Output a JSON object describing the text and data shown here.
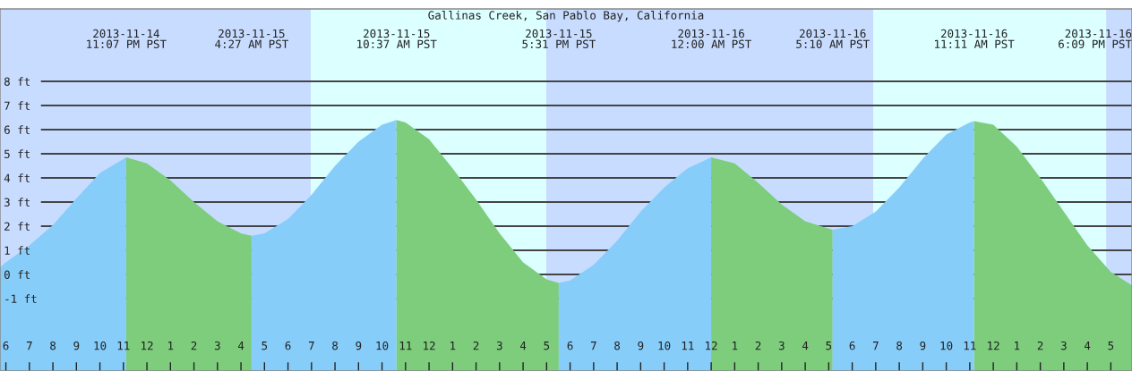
{
  "chart_data": {
    "type": "area",
    "title": "Gallinas Creek, San Pablo Bay, California",
    "xlim": [
      "2013-11-14T17:45",
      "2013-11-16T17:54"
    ],
    "ylim": [
      -4,
      11
    ],
    "xticks": [
      {
        "value": "2013-11-14T18:00",
        "label": "6"
      },
      {
        "value": "2013-11-14T19:00",
        "label": "7"
      },
      {
        "value": "2013-11-14T20:00",
        "label": "8"
      },
      {
        "value": "2013-11-14T21:00",
        "label": "9"
      },
      {
        "value": "2013-11-14T22:00",
        "label": "10"
      },
      {
        "value": "2013-11-14T23:00",
        "label": "11"
      },
      {
        "value": "2013-11-15T00:00",
        "label": "12"
      },
      {
        "value": "2013-11-15T01:00",
        "label": "1"
      },
      {
        "value": "2013-11-15T02:00",
        "label": "2"
      },
      {
        "value": "2013-11-15T03:00",
        "label": "3"
      },
      {
        "value": "2013-11-15T04:00",
        "label": "4"
      },
      {
        "value": "2013-11-15T05:00",
        "label": "5"
      },
      {
        "value": "2013-11-15T06:00",
        "label": "6"
      },
      {
        "value": "2013-11-15T07:00",
        "label": "7"
      },
      {
        "value": "2013-11-15T08:00",
        "label": "8"
      },
      {
        "value": "2013-11-15T09:00",
        "label": "9"
      },
      {
        "value": "2013-11-15T10:00",
        "label": "10"
      },
      {
        "value": "2013-11-15T11:00",
        "label": "11"
      },
      {
        "value": "2013-11-15T12:00",
        "label": "12"
      },
      {
        "value": "2013-11-15T13:00",
        "label": "1"
      },
      {
        "value": "2013-11-15T14:00",
        "label": "2"
      },
      {
        "value": "2013-11-15T15:00",
        "label": "3"
      },
      {
        "value": "2013-11-15T16:00",
        "label": "4"
      },
      {
        "value": "2013-11-15T17:00",
        "label": "5"
      },
      {
        "value": "2013-11-15T18:00",
        "label": "6"
      },
      {
        "value": "2013-11-15T19:00",
        "label": "7"
      },
      {
        "value": "2013-11-15T20:00",
        "label": "8"
      },
      {
        "value": "2013-11-15T21:00",
        "label": "9"
      },
      {
        "value": "2013-11-15T22:00",
        "label": "10"
      },
      {
        "value": "2013-11-15T23:00",
        "label": "11"
      },
      {
        "value": "2013-11-16T00:00",
        "label": "12"
      },
      {
        "value": "2013-11-16T01:00",
        "label": "1"
      },
      {
        "value": "2013-11-16T02:00",
        "label": "2"
      },
      {
        "value": "2013-11-16T03:00",
        "label": "3"
      },
      {
        "value": "2013-11-16T04:00",
        "label": "4"
      },
      {
        "value": "2013-11-16T05:00",
        "label": "5"
      },
      {
        "value": "2013-11-16T06:00",
        "label": "6"
      },
      {
        "value": "2013-11-16T07:00",
        "label": "7"
      },
      {
        "value": "2013-11-16T08:00",
        "label": "8"
      },
      {
        "value": "2013-11-16T09:00",
        "label": "9"
      },
      {
        "value": "2013-11-16T10:00",
        "label": "10"
      },
      {
        "value": "2013-11-16T11:00",
        "label": "11"
      },
      {
        "value": "2013-11-16T12:00",
        "label": "12"
      },
      {
        "value": "2013-11-16T13:00",
        "label": "1"
      },
      {
        "value": "2013-11-16T14:00",
        "label": "2"
      },
      {
        "value": "2013-11-16T15:00",
        "label": "3"
      },
      {
        "value": "2013-11-16T16:00",
        "label": "4"
      },
      {
        "value": "2013-11-16T17:00",
        "label": "5"
      }
    ],
    "yticks": [
      {
        "value": -1,
        "label": "-1 ft"
      },
      {
        "value": 0,
        "label": "0 ft"
      },
      {
        "value": 1,
        "label": "1 ft"
      },
      {
        "value": 2,
        "label": "2 ft"
      },
      {
        "value": 3,
        "label": "3 ft"
      },
      {
        "value": 4,
        "label": "4 ft"
      },
      {
        "value": 5,
        "label": "5 ft"
      },
      {
        "value": 6,
        "label": "6 ft"
      },
      {
        "value": 7,
        "label": "7 ft"
      },
      {
        "value": 8,
        "label": "8 ft"
      }
    ],
    "grid": "y",
    "bands": [
      {
        "axis": "x",
        "from": "2013-11-14T17:45",
        "to": "2013-11-15T06:58",
        "color": "#c8dcff"
      },
      {
        "axis": "x",
        "from": "2013-11-15T06:58",
        "to": "2013-11-15T16:59",
        "color": "#dcffff"
      },
      {
        "axis": "x",
        "from": "2013-11-15T16:59",
        "to": "2013-11-16T06:54",
        "color": "#c8dcff"
      },
      {
        "axis": "x",
        "from": "2013-11-16T06:54",
        "to": "2013-11-16T16:48",
        "color": "#dcffff"
      },
      {
        "axis": "x",
        "from": "2013-11-16T16:48",
        "to": "2013-11-16T17:54",
        "color": "#c8dcff"
      }
    ],
    "series": [
      {
        "color": "#87cdfa",
        "x": [
          "2013-11-14T17:45",
          "2013-11-14T18:00",
          "2013-11-14T19:00",
          "2013-11-14T20:00",
          "2013-11-14T21:00",
          "2013-11-14T22:00",
          "2013-11-14T23:07"
        ],
        "values": [
          0.3,
          0.5,
          1.2,
          2.05,
          3.15,
          4.2,
          4.85
        ]
      },
      {
        "color": "#7dcd7d",
        "x": [
          "2013-11-14T23:07",
          "2013-11-15T00:00",
          "2013-11-15T01:00",
          "2013-11-15T02:00",
          "2013-11-15T03:00",
          "2013-11-15T04:00",
          "2013-11-15T04:27"
        ],
        "values": [
          4.85,
          4.6,
          3.9,
          3.0,
          2.2,
          1.7,
          1.6
        ]
      },
      {
        "color": "#87cdfa",
        "x": [
          "2013-11-15T04:27",
          "2013-11-15T05:00",
          "2013-11-15T06:00",
          "2013-11-15T07:00",
          "2013-11-15T08:00",
          "2013-11-15T09:00",
          "2013-11-15T10:00",
          "2013-11-15T10:37"
        ],
        "values": [
          1.6,
          1.7,
          2.3,
          3.3,
          4.5,
          5.5,
          6.2,
          6.4
        ]
      },
      {
        "color": "#7dcd7d",
        "x": [
          "2013-11-15T10:37",
          "2013-11-15T11:00",
          "2013-11-15T12:00",
          "2013-11-15T13:00",
          "2013-11-15T14:00",
          "2013-11-15T15:00",
          "2013-11-15T16:00",
          "2013-11-15T17:00",
          "2013-11-15T17:31"
        ],
        "values": [
          6.4,
          6.3,
          5.6,
          4.4,
          3.1,
          1.7,
          0.5,
          -0.2,
          -0.35
        ]
      },
      {
        "color": "#87cdfa",
        "x": [
          "2013-11-15T17:31",
          "2013-11-15T18:00",
          "2013-11-15T19:00",
          "2013-11-15T20:00",
          "2013-11-15T21:00",
          "2013-11-15T22:00",
          "2013-11-15T23:00",
          "2013-11-16T00:00"
        ],
        "values": [
          -0.35,
          -0.25,
          0.4,
          1.4,
          2.6,
          3.6,
          4.4,
          4.85
        ]
      },
      {
        "color": "#7dcd7d",
        "x": [
          "2013-11-16T00:00",
          "2013-11-16T01:00",
          "2013-11-16T02:00",
          "2013-11-16T03:00",
          "2013-11-16T04:00",
          "2013-11-16T05:00",
          "2013-11-16T05:10"
        ],
        "values": [
          4.85,
          4.6,
          3.8,
          2.9,
          2.2,
          1.9,
          1.85
        ]
      },
      {
        "color": "#87cdfa",
        "x": [
          "2013-11-16T05:10",
          "2013-11-16T06:00",
          "2013-11-16T07:00",
          "2013-11-16T08:00",
          "2013-11-16T09:00",
          "2013-11-16T10:00",
          "2013-11-16T11:00",
          "2013-11-16T11:11"
        ],
        "values": [
          1.85,
          2.0,
          2.6,
          3.6,
          4.8,
          5.8,
          6.3,
          6.35
        ]
      },
      {
        "color": "#7dcd7d",
        "x": [
          "2013-11-16T11:11",
          "2013-11-16T12:00",
          "2013-11-16T13:00",
          "2013-11-16T14:00",
          "2013-11-16T15:00",
          "2013-11-16T16:00",
          "2013-11-16T17:00",
          "2013-11-16T17:54"
        ],
        "values": [
          6.35,
          6.2,
          5.3,
          4.0,
          2.6,
          1.2,
          0.1,
          -0.45
        ]
      }
    ],
    "annotations": [
      "2013-11-14\n11:07 PM PST",
      "2013-11-15\n4:27 AM PST",
      "2013-11-15\n10:37 AM PST",
      "2013-11-15\n5:31 PM PST",
      "2013-11-16\n12:00 AM PST",
      "2013-11-16\n5:10 AM PST",
      "2013-11-16\n11:11 AM PST",
      "2013-11-16\n6:09 PM PST"
    ]
  }
}
